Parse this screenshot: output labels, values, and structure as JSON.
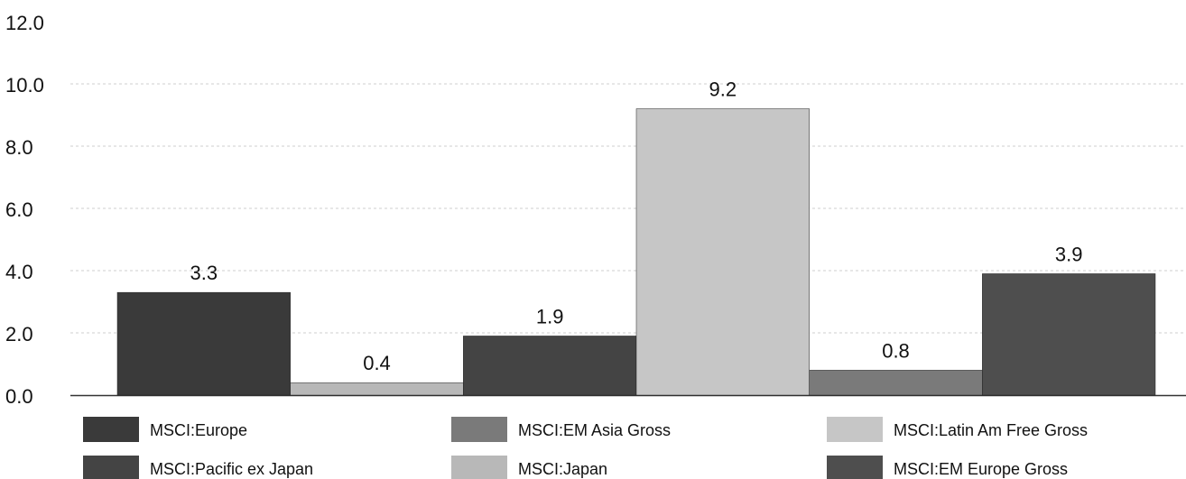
{
  "chart_data": {
    "type": "bar",
    "title": "",
    "xlabel": "",
    "ylabel": "",
    "ylim": [
      0,
      12
    ],
    "yticks": [
      "0.0",
      "2.0",
      "4.0",
      "6.0",
      "8.0",
      "10.0",
      "12.0"
    ],
    "grid": true,
    "legend_position": "bottom",
    "series": [
      {
        "name": "MSCI:Europe",
        "value": 3.3,
        "label": "3.3",
        "color": "#3a3a3a"
      },
      {
        "name": "MSCI:Japan",
        "value": 0.4,
        "label": "0.4",
        "color": "#b8b8b8"
      },
      {
        "name": "MSCI:Pacific ex Japan",
        "value": 1.9,
        "label": "1.9",
        "color": "#444444"
      },
      {
        "name": "MSCI:Latin Am Free Gross",
        "value": 9.2,
        "label": "9.2",
        "color": "#c6c6c6"
      },
      {
        "name": "MSCI:EM Asia Gross",
        "value": 0.8,
        "label": "0.8",
        "color": "#7a7a7a"
      },
      {
        "name": "MSCI:EM Europe Gross",
        "value": 3.9,
        "label": "3.9",
        "color": "#4e4e4e"
      }
    ],
    "legend_order": [
      0,
      2,
      4,
      1,
      3,
      5
    ]
  }
}
